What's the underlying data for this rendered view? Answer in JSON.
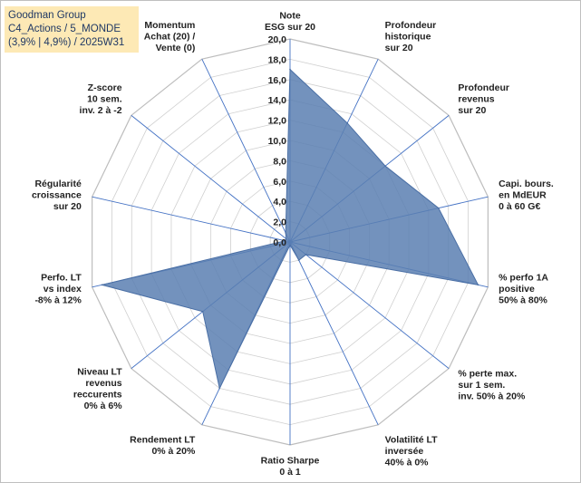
{
  "title_box": {
    "line1": "Goodman Group",
    "line2": "C4_Actions / 5_MONDE",
    "line3": "(3,9% | 4,9%) / 2025W31"
  },
  "colors": {
    "fill": "#5b7fb2",
    "stroke": "#4a6fa5",
    "grid": "#d0d0d0",
    "spoke": "#4472c4",
    "title_bg": "#fde9b5"
  },
  "chart_data": {
    "type": "radar",
    "rmin": 0,
    "rmax": 20,
    "tick_step": 2,
    "tick_labels": [
      "0,0",
      "2,0",
      "4,0",
      "6,0",
      "8,0",
      "10,0",
      "12,0",
      "14,0",
      "16,0",
      "18,0",
      "20,0"
    ],
    "axes": [
      {
        "label": [
          "Note",
          "ESG sur 20"
        ],
        "value": 17.0
      },
      {
        "label": [
          "Profondeur",
          "historique",
          "sur 20"
        ],
        "value": 13.0
      },
      {
        "label": [
          "Profondeur",
          "revenus",
          "sur 20"
        ],
        "value": 12.0
      },
      {
        "label": [
          "Capi. bours.",
          "en MdEUR",
          "0 à 60 G€"
        ],
        "value": 15.0
      },
      {
        "label": [
          "% perfo 1A",
          "positive",
          "50% à 80%"
        ],
        "value": 19.0
      },
      {
        "label": [
          "% perte max.",
          "sur 1 sem.",
          "inv. 50% à 20%"
        ],
        "value": 2.0
      },
      {
        "label": [
          "Volatilité LT",
          "inversée",
          "40% à 0%"
        ],
        "value": 2.0
      },
      {
        "label": [
          "Ratio Sharpe",
          "0 à 1"
        ],
        "value": 0.3
      },
      {
        "label": [
          "Rendement LT",
          "0% à 20%"
        ],
        "value": 16.0
      },
      {
        "label": [
          "Niveau LT",
          "revenus",
          "reccurents",
          "0% à 6%"
        ],
        "value": 11.0
      },
      {
        "label": [
          "Perfo. LT",
          "vs index",
          "-8% à 12%"
        ],
        "value": 19.0
      },
      {
        "label": [
          "Régularité",
          "croissance",
          "sur 20"
        ],
        "value": 0.5
      },
      {
        "label": [
          "Z-score",
          "10 sem.",
          "inv. 2 à -2"
        ],
        "value": 0.5
      },
      {
        "label": [
          "Momentum",
          "Achat (20) /",
          "Vente (0)"
        ],
        "value": 1.0
      }
    ]
  }
}
